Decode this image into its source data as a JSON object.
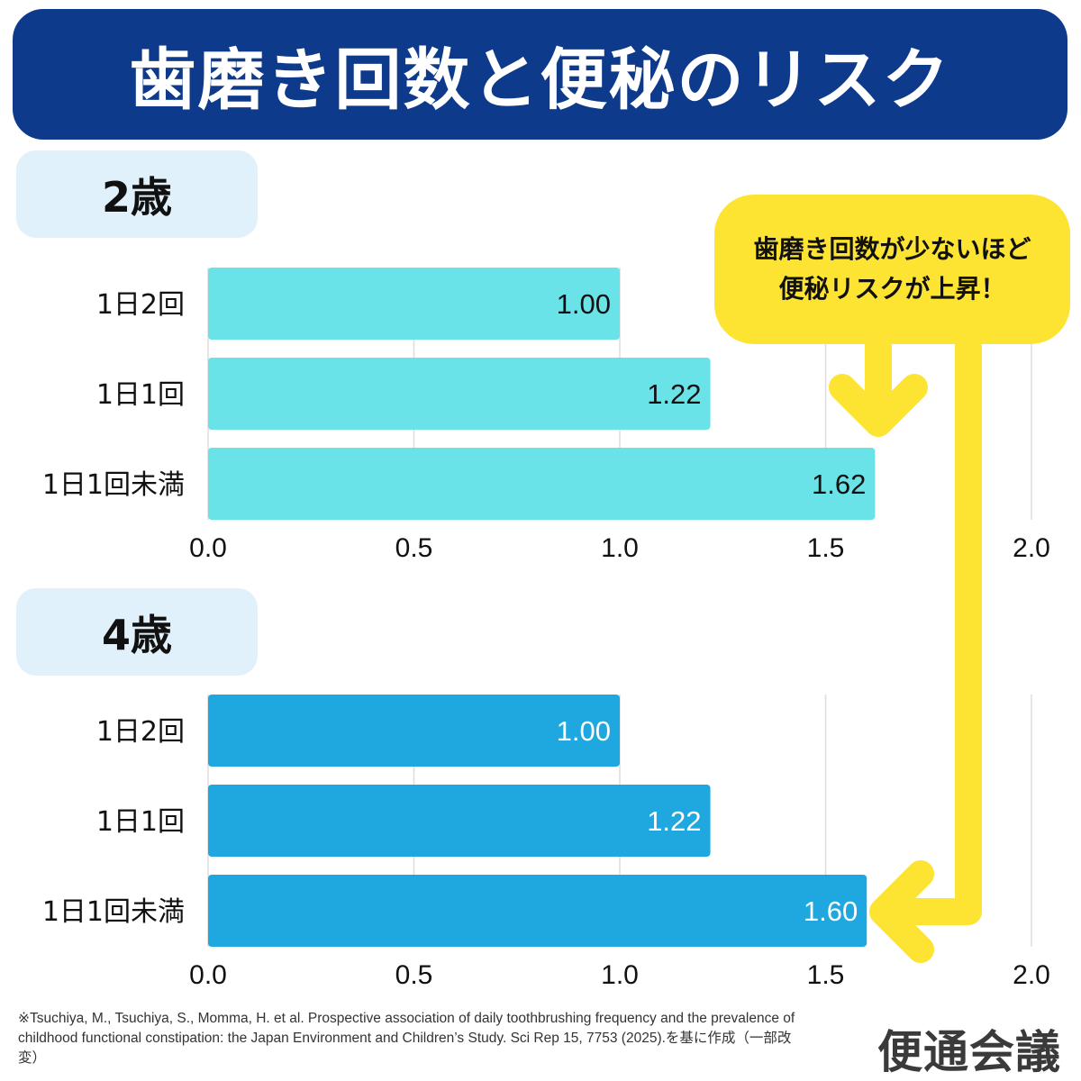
{
  "title": "歯磨き回数と便秘のリスク",
  "callout": {
    "line1": "歯磨き回数が少ないほど",
    "line2": "便秘リスクが上昇！"
  },
  "colors": {
    "banner": "#0e3a8c",
    "bar_age2": "#6ae3e8",
    "bar_age4": "#1fa8e0",
    "callout": "#fde432",
    "label_bg": "#e1f1fb"
  },
  "chart_data": [
    {
      "type": "bar",
      "orientation": "horizontal",
      "title": "2歳",
      "categories": [
        "1日2回",
        "1日1回",
        "1日1回未満"
      ],
      "values": [
        1.0,
        1.22,
        1.62
      ],
      "value_labels": [
        "1.00",
        "1.22",
        "1.62"
      ],
      "xlim": [
        0,
        2.0
      ],
      "xticks": [
        "0.0",
        "0.5",
        "1.0",
        "1.5",
        "2.0"
      ],
      "grid": true
    },
    {
      "type": "bar",
      "orientation": "horizontal",
      "title": "4歳",
      "categories": [
        "1日2回",
        "1日1回",
        "1日1回未満"
      ],
      "values": [
        1.0,
        1.22,
        1.6
      ],
      "value_labels": [
        "1.00",
        "1.22",
        "1.60"
      ],
      "xlim": [
        0,
        2.0
      ],
      "xticks": [
        "0.0",
        "0.5",
        "1.0",
        "1.5",
        "2.0"
      ],
      "grid": true
    }
  ],
  "citation": "※Tsuchiya, M., Tsuchiya, S., Momma, H. et al. Prospective association of daily toothbrushing frequency and the prevalence of childhood functional constipation: the Japan Environment and Children’s Study. Sci Rep 15, 7753 (2025).を基に作成（一部改変）",
  "logo": "便通会議"
}
